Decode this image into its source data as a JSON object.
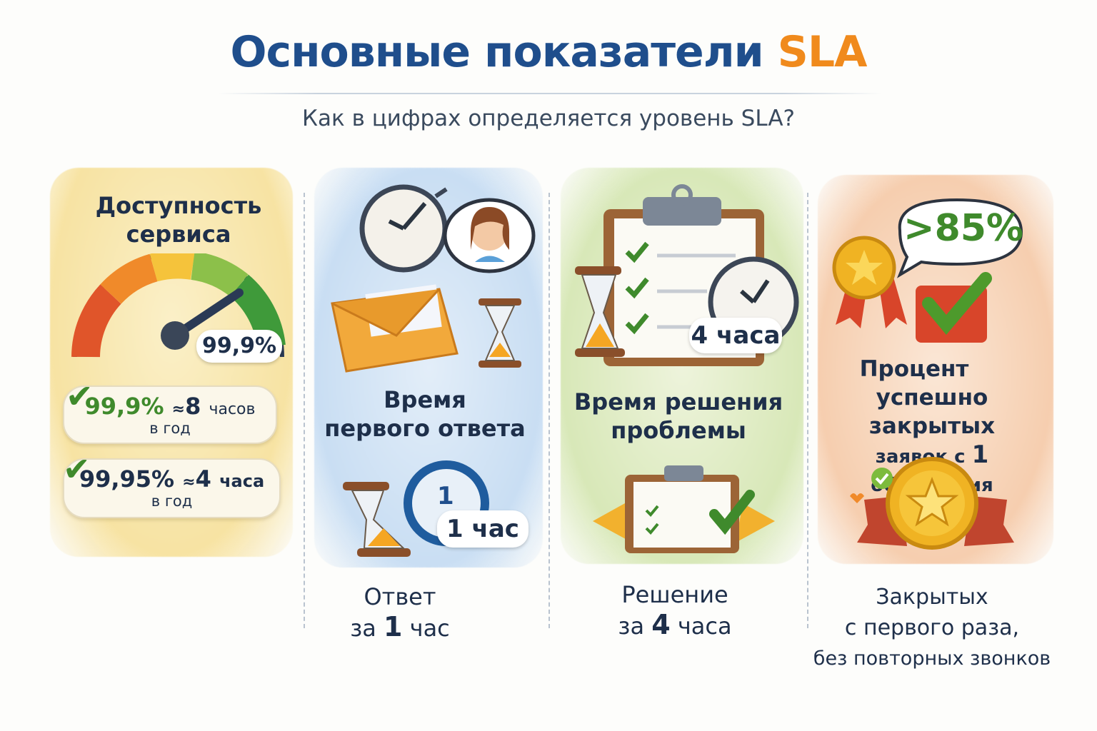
{
  "header": {
    "title_main": "Основные показатели",
    "title_accent": "SLA",
    "subtitle": "Как в цифрах определяется уровень SLA?"
  },
  "colors": {
    "title": "#1f4e8c",
    "accent": "#f08a1c",
    "green": "#3f8a2c",
    "text": "#1e2f4a"
  },
  "columns": [
    {
      "heading_1": "Доступность",
      "heading_2": "сервиса",
      "gauge_value": "99,9%",
      "gauge_level_percent": 99.9,
      "items": [
        {
          "value": "99,9%",
          "approx": "≈",
          "amount": "8",
          "unit": "часов",
          "period": "в год"
        },
        {
          "value": "99,95%",
          "approx": "≈",
          "amount": "4",
          "unit": "часа",
          "period": "в год"
        }
      ],
      "icons": [
        "gauge-icon",
        "check-icon"
      ]
    },
    {
      "heading_1": "Время",
      "heading_2": "первого ответа",
      "badge": "1 час",
      "clock_digit": "1",
      "footer_1": "Ответ",
      "footer_2_pre": "за",
      "footer_2_num": "1",
      "footer_2_unit": "час",
      "icons": [
        "clock-icon",
        "support-agent-icon",
        "envelope-icon",
        "hourglass-icon"
      ]
    },
    {
      "heading_1": "Время решения",
      "heading_2": "проблемы",
      "badge": "4 часа",
      "footer_1": "Решение",
      "footer_2_pre": "за",
      "footer_2_num": "4",
      "footer_2_unit": "часа",
      "icons": [
        "clipboard-checklist-icon",
        "hourglass-icon",
        "clock-icon"
      ]
    },
    {
      "bubble": ">85%",
      "heading_1": "Процент",
      "heading_2": "успешно закрытых",
      "heading_3_pre": "заявок с",
      "heading_3_num": "1",
      "heading_3_post": "обращения",
      "footer_1": "Закрытых",
      "footer_2": "с первого раза,",
      "footer_3": "без повторных звонков",
      "icons": [
        "medal-icon",
        "check-icon",
        "gold-coin-star-icon"
      ]
    }
  ]
}
